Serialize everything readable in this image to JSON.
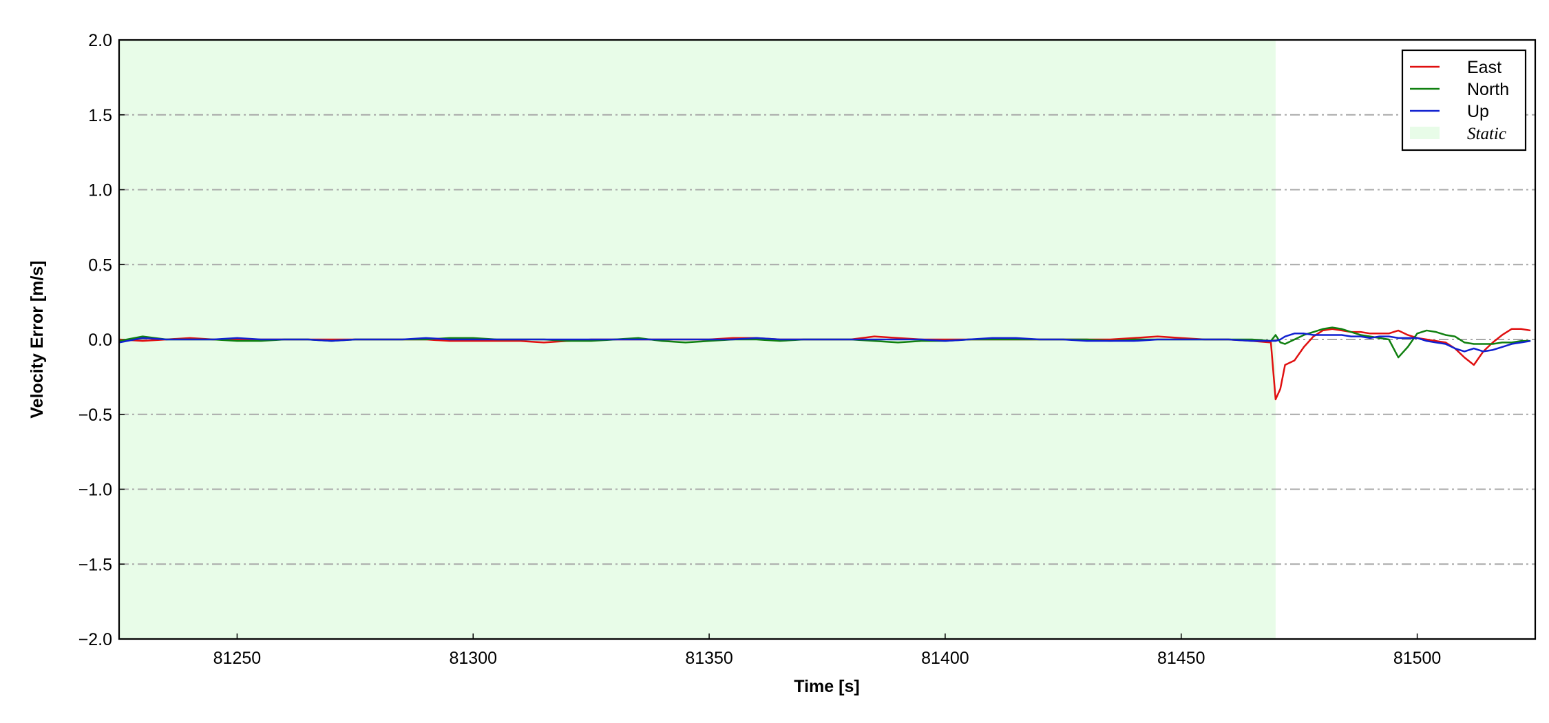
{
  "chart_data": {
    "type": "line",
    "xlabel": "Time [s]",
    "ylabel": "Velocity Error [m/s]",
    "xlim": [
      81225,
      81525
    ],
    "ylim": [
      -2,
      2
    ],
    "xticks": [
      81250,
      81300,
      81350,
      81400,
      81450,
      81500
    ],
    "yticks": [
      {
        "value": -2,
        "label": "−2.0"
      },
      {
        "value": -1.5,
        "label": "−1.5"
      },
      {
        "value": -1,
        "label": "−1.0"
      },
      {
        "value": -0.5,
        "label": "−0.5"
      },
      {
        "value": 0,
        "label": "0.0"
      },
      0.5,
      {
        "value": 1,
        "label": "1.0"
      },
      1.5,
      {
        "value": 2,
        "label": "2.0"
      }
    ],
    "grid": "y",
    "legend": "upper right",
    "shaded_regions": [
      {
        "name": "Static",
        "xlim": [
          81225,
          81470
        ],
        "color": "#e8fce8"
      }
    ],
    "x": [
      81225,
      81230,
      81235,
      81240,
      81245,
      81250,
      81255,
      81260,
      81265,
      81270,
      81275,
      81280,
      81285,
      81290,
      81295,
      81300,
      81305,
      81310,
      81315,
      81320,
      81325,
      81330,
      81335,
      81340,
      81345,
      81350,
      81355,
      81360,
      81365,
      81370,
      81375,
      81380,
      81385,
      81390,
      81395,
      81400,
      81405,
      81410,
      81415,
      81420,
      81425,
      81430,
      81435,
      81440,
      81445,
      81450,
      81455,
      81460,
      81465,
      81469,
      81470,
      81471,
      81472,
      81474,
      81476,
      81478,
      81480,
      81482,
      81484,
      81486,
      81488,
      81490,
      81492,
      81494,
      81496,
      81498,
      81500,
      81502,
      81504,
      81506,
      81508,
      81510,
      81512,
      81514,
      81516,
      81518,
      81520,
      81522,
      81524
    ],
    "series": [
      {
        "name": "East",
        "color": "#e01010",
        "values": [
          0,
          -0.01,
          0,
          0.01,
          0,
          0,
          0,
          0,
          0,
          0,
          0,
          0,
          0,
          0,
          -0.01,
          -0.01,
          -0.01,
          -0.01,
          -0.02,
          -0.01,
          0,
          0,
          0,
          0,
          0,
          0,
          0.01,
          0.01,
          0,
          0,
          0,
          0,
          0.02,
          0.01,
          0,
          0,
          0,
          0,
          0,
          0,
          0,
          0,
          0,
          0.01,
          0.02,
          0.01,
          0,
          0,
          -0.01,
          -0.02,
          -0.4,
          -0.33,
          -0.17,
          -0.14,
          -0.05,
          0.02,
          0.06,
          0.07,
          0.06,
          0.05,
          0.05,
          0.04,
          0.04,
          0.04,
          0.06,
          0.03,
          0.01,
          0,
          -0.01,
          -0.02,
          -0.06,
          -0.12,
          -0.17,
          -0.08,
          -0.02,
          0.03,
          0.07,
          0.07,
          0.06
        ]
      },
      {
        "name": "North",
        "color": "#108010",
        "values": [
          -0.01,
          0.02,
          0,
          0,
          0,
          -0.01,
          -0.01,
          0,
          0,
          -0.01,
          0,
          0,
          0,
          0,
          0.01,
          0.01,
          0,
          0,
          0,
          -0.01,
          -0.01,
          0,
          0.01,
          -0.01,
          -0.02,
          -0.01,
          0,
          0,
          -0.01,
          0,
          0,
          0,
          -0.01,
          -0.02,
          -0.01,
          -0.01,
          0,
          0,
          0,
          0,
          0,
          0,
          -0.01,
          0,
          0,
          0,
          0,
          0,
          0,
          -0.01,
          0.03,
          -0.02,
          -0.03,
          0,
          0.03,
          0.05,
          0.07,
          0.08,
          0.07,
          0.05,
          0.03,
          0.02,
          0.01,
          0,
          -0.12,
          -0.05,
          0.04,
          0.06,
          0.05,
          0.03,
          0.02,
          -0.02,
          -0.03,
          -0.03,
          -0.03,
          -0.02,
          -0.02,
          -0.01,
          -0.01
        ]
      },
      {
        "name": "Up",
        "color": "#1020d0",
        "values": [
          -0.02,
          0.01,
          0,
          0,
          0,
          0.01,
          0,
          0,
          0,
          -0.01,
          0,
          0,
          0,
          0.01,
          0,
          0,
          0,
          0,
          0,
          0,
          0,
          0,
          0,
          0,
          0,
          0,
          0,
          0.01,
          0,
          0,
          0,
          0,
          0,
          0,
          0,
          -0.01,
          0,
          0.01,
          0.01,
          0,
          0,
          -0.01,
          -0.01,
          -0.01,
          0,
          0,
          0,
          0,
          -0.01,
          -0.01,
          -0.01,
          0,
          0.02,
          0.04,
          0.04,
          0.03,
          0.03,
          0.03,
          0.03,
          0.02,
          0.02,
          0.01,
          0.02,
          0.02,
          0.01,
          0.01,
          0.01,
          -0.01,
          -0.02,
          -0.03,
          -0.06,
          -0.08,
          -0.06,
          -0.08,
          -0.07,
          -0.05,
          -0.03,
          -0.02,
          -0.01
        ]
      }
    ]
  }
}
